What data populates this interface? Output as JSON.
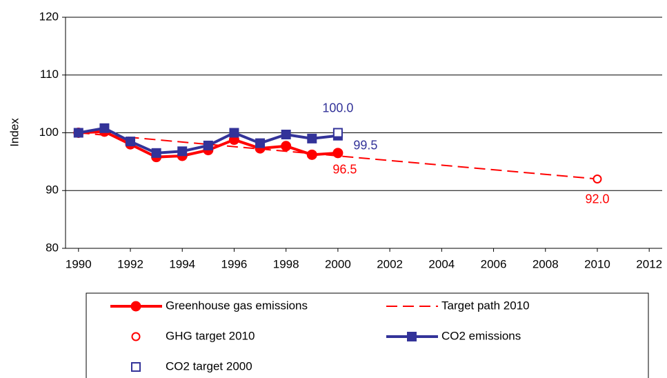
{
  "chart_data": {
    "type": "line",
    "ylabel": "Index",
    "xlim": [
      1989.5,
      2012.5
    ],
    "xticks": [
      1990,
      1992,
      1994,
      1996,
      1998,
      2000,
      2002,
      2004,
      2006,
      2008,
      2010,
      2012
    ],
    "ylim": [
      80,
      120
    ],
    "yticks": [
      80,
      90,
      100,
      110,
      120
    ],
    "grid": true,
    "legend": "bottom",
    "series": [
      {
        "name": "Greenhouse gas emissions",
        "color": "#ff0000",
        "line": "solid",
        "marker": "circle",
        "filled": true,
        "x": [
          1990,
          1991,
          1992,
          1993,
          1994,
          1995,
          1996,
          1997,
          1998,
          1999,
          2000
        ],
        "values": [
          100,
          100.2,
          98,
          95.8,
          96,
          97,
          98.8,
          97.3,
          97.7,
          96.2,
          96.5
        ],
        "value_labels": [
          null,
          null,
          null,
          null,
          null,
          null,
          null,
          null,
          null,
          null,
          "96.5"
        ]
      },
      {
        "name": "Target path 2010",
        "color": "#ff0000",
        "line": "dashed",
        "marker": "none",
        "x": [
          1990,
          2010
        ],
        "values": [
          100,
          92
        ]
      },
      {
        "name": "GHG target 2010",
        "color": "#ff0000",
        "line": "none",
        "marker": "circle",
        "filled": false,
        "x": [
          2010
        ],
        "values": [
          92
        ],
        "value_labels": [
          "92.0"
        ]
      },
      {
        "name": "CO2 emissions",
        "color": "#333399",
        "line": "solid",
        "marker": "square",
        "filled": true,
        "x": [
          1990,
          1991,
          1992,
          1993,
          1994,
          1995,
          1996,
          1997,
          1998,
          1999,
          2000
        ],
        "values": [
          100,
          100.8,
          98.5,
          96.5,
          96.8,
          97.8,
          100,
          98.2,
          99.7,
          99,
          99.5
        ],
        "value_labels": [
          null,
          null,
          null,
          null,
          null,
          null,
          null,
          null,
          null,
          null,
          "99.5"
        ]
      },
      {
        "name": "CO2 target 2000",
        "color": "#333399",
        "line": "none",
        "marker": "square",
        "filled": false,
        "x": [
          2000
        ],
        "values": [
          100
        ],
        "value_labels": [
          "100.0"
        ]
      }
    ]
  }
}
